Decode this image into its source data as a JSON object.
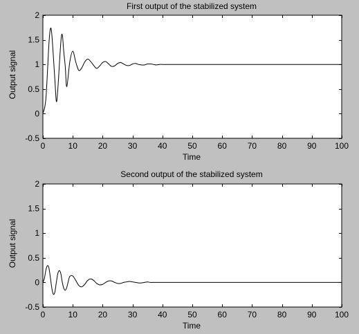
{
  "colors": {
    "figure_background": "#c0c0c0",
    "axes_background": "#ffffff",
    "line": "#000000"
  },
  "chart_data": [
    {
      "type": "line",
      "title": "First output of the stabilized system",
      "xlabel": "Time",
      "ylabel": "Output signal",
      "xlim": [
        0,
        100
      ],
      "ylim": [
        -0.5,
        2
      ],
      "xticks": [
        0,
        10,
        20,
        30,
        40,
        50,
        60,
        70,
        80,
        90,
        100
      ],
      "yticks": [
        -0.5,
        0,
        0.5,
        1,
        1.5,
        2
      ],
      "ytick_labels": [
        "-0.5",
        "0",
        "0.5",
        "1",
        "1.5",
        "2"
      ],
      "grid": false,
      "series": [
        {
          "x": [
            0,
            1,
            2,
            2.5,
            3,
            4,
            4.5,
            5,
            6,
            6.5,
            7,
            7.5,
            8,
            9,
            10,
            11,
            12,
            13,
            14,
            15,
            16,
            17,
            18,
            19,
            20,
            21,
            22,
            23,
            24,
            25,
            26,
            27,
            28,
            29,
            30,
            31,
            32,
            33,
            34,
            35,
            36,
            37,
            38,
            39,
            40,
            42,
            45,
            50,
            60,
            70,
            80,
            90,
            100
          ],
          "y": [
            0,
            0.3,
            1.4,
            1.72,
            1.6,
            0.7,
            0.25,
            0.5,
            1.45,
            1.6,
            1.25,
            0.95,
            0.55,
            1.05,
            1.27,
            1.05,
            0.88,
            0.93,
            1.05,
            1.11,
            1.06,
            0.98,
            0.92,
            0.97,
            1.04,
            1.06,
            1.01,
            0.96,
            0.97,
            1.02,
            1.04,
            1.01,
            0.98,
            0.98,
            1.01,
            1.02,
            1.0,
            0.99,
            0.99,
            1.01,
            1.01,
            1.0,
            0.99,
            1.0,
            1.0,
            1.0,
            1.0,
            1.0,
            1.0,
            1.0,
            1.0,
            1.0,
            1.0
          ]
        }
      ]
    },
    {
      "type": "line",
      "title": "Second output of the stabilized system",
      "xlabel": "Time",
      "ylabel": "Output signal",
      "xlim": [
        0,
        100
      ],
      "ylim": [
        -0.5,
        2
      ],
      "xticks": [
        0,
        10,
        20,
        30,
        40,
        50,
        60,
        70,
        80,
        90,
        100
      ],
      "yticks": [
        -0.5,
        0,
        0.5,
        1,
        1.5,
        2
      ],
      "ytick_labels": [
        "-0.5",
        "0",
        "0.5",
        "1",
        "1.5",
        "2"
      ],
      "grid": false,
      "series": [
        {
          "x": [
            0,
            0.5,
            1,
            1.5,
            2,
            2.5,
            3,
            3.5,
            4,
            4.5,
            5,
            5.5,
            6,
            6.5,
            7,
            7.5,
            8,
            8.5,
            9,
            10,
            11,
            12,
            13,
            14,
            15,
            16,
            17,
            18,
            19,
            20,
            21,
            22,
            23,
            24,
            25,
            26,
            27,
            28,
            29,
            30,
            31,
            32,
            33,
            34,
            35,
            36,
            37,
            38,
            40,
            45,
            50,
            60,
            70,
            80,
            90,
            100
          ],
          "y": [
            0,
            0.08,
            0.25,
            0.34,
            0.3,
            0.1,
            -0.12,
            -0.24,
            -0.2,
            0.0,
            0.18,
            0.24,
            0.18,
            0.0,
            -0.12,
            -0.16,
            -0.1,
            0.02,
            0.12,
            0.13,
            0.04,
            -0.06,
            -0.09,
            -0.04,
            0.04,
            0.07,
            0.04,
            -0.02,
            -0.05,
            -0.04,
            0.0,
            0.03,
            0.03,
            0.0,
            -0.02,
            -0.02,
            0.0,
            0.01,
            0.02,
            0.01,
            0.0,
            -0.01,
            -0.01,
            0.0,
            0.01,
            0.0,
            0.0,
            0.0,
            0.0,
            0.0,
            0.0,
            0.0,
            0.0,
            0.0,
            0.0,
            0.0
          ]
        }
      ]
    }
  ]
}
